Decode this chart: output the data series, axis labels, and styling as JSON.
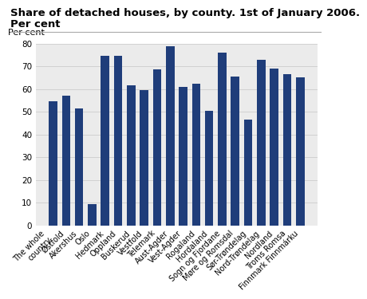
{
  "title_line1": "Share of detached houses, by county. 1st of January 2006.",
  "title_line2": "Per cent",
  "ylabel": "Per cent",
  "categories": [
    "The whole\ncountry",
    "Østfold",
    "Akershus",
    "Oslo",
    "Hedmark",
    "Oppland",
    "Buskerud",
    "Vestfold",
    "Telemark",
    "Aust-Agder",
    "Vest-Agder",
    "Rogaland",
    "Hordaland",
    "Sogn og Fjordane",
    "Møre og Romsdal",
    "Sør-Trøndelag",
    "Nord-Trøndelag",
    "Nordland",
    "Troms Romsa",
    "Finnmark Finnmárku"
  ],
  "values": [
    54.5,
    57.0,
    51.5,
    9.5,
    74.5,
    74.5,
    61.5,
    59.5,
    68.5,
    79.0,
    61.0,
    62.5,
    50.5,
    76.0,
    65.5,
    46.5,
    73.0,
    69.0,
    66.5,
    65.0
  ],
  "bar_color": "#1f3d7a",
  "ylim": [
    0,
    80
  ],
  "yticks": [
    0,
    10,
    20,
    30,
    40,
    50,
    60,
    70,
    80
  ],
  "grid_color": "#cccccc",
  "plot_bg_color": "#ebebeb",
  "fig_bg_color": "#ffffff",
  "title_fontsize": 9.5,
  "ylabel_fontsize": 8.0,
  "tick_fontsize": 7.5,
  "label_fontsize": 7.0
}
